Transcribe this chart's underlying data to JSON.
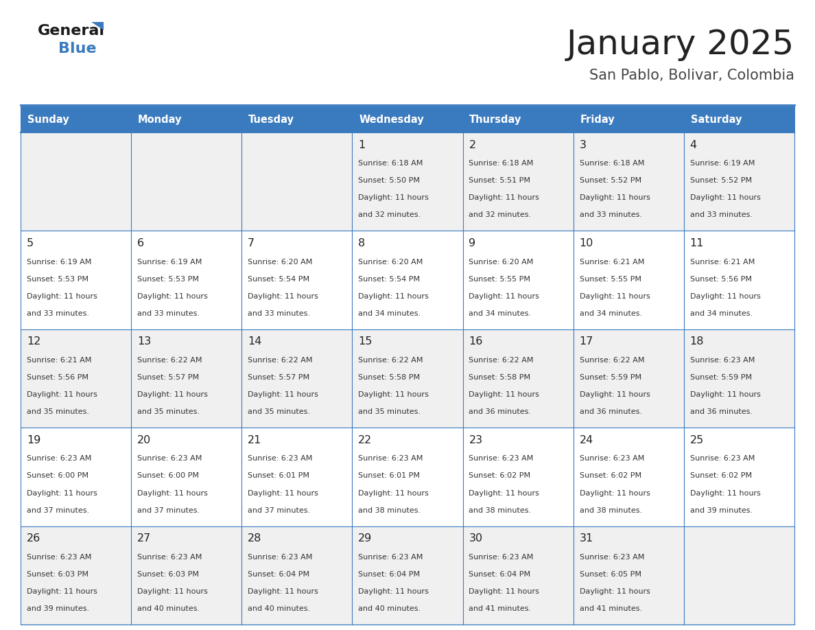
{
  "title": "January 2025",
  "subtitle": "San Pablo, Bolivar, Colombia",
  "days_of_week": [
    "Sunday",
    "Monday",
    "Tuesday",
    "Wednesday",
    "Thursday",
    "Friday",
    "Saturday"
  ],
  "header_bg": "#3a7abf",
  "header_text_color": "#ffffff",
  "row_bg_odd": "#f0f0f0",
  "row_bg_even": "#ffffff",
  "border_color": "#3a7abf",
  "day_number_color": "#222222",
  "content_color": "#333333",
  "title_color": "#222222",
  "subtitle_color": "#444444",
  "logo_general_color": "#1a1a1a",
  "logo_blue_color": "#3a7abf",
  "logo_triangle_color": "#3a7abf",
  "calendar_data": [
    [
      null,
      null,
      null,
      {
        "day": "1",
        "sunrise": "6:18 AM",
        "sunset": "5:50 PM",
        "daylight_line1": "Daylight: 11 hours",
        "daylight_line2": "and 32 minutes."
      },
      {
        "day": "2",
        "sunrise": "6:18 AM",
        "sunset": "5:51 PM",
        "daylight_line1": "Daylight: 11 hours",
        "daylight_line2": "and 32 minutes."
      },
      {
        "day": "3",
        "sunrise": "6:18 AM",
        "sunset": "5:52 PM",
        "daylight_line1": "Daylight: 11 hours",
        "daylight_line2": "and 33 minutes."
      },
      {
        "day": "4",
        "sunrise": "6:19 AM",
        "sunset": "5:52 PM",
        "daylight_line1": "Daylight: 11 hours",
        "daylight_line2": "and 33 minutes."
      }
    ],
    [
      {
        "day": "5",
        "sunrise": "6:19 AM",
        "sunset": "5:53 PM",
        "daylight_line1": "Daylight: 11 hours",
        "daylight_line2": "and 33 minutes."
      },
      {
        "day": "6",
        "sunrise": "6:19 AM",
        "sunset": "5:53 PM",
        "daylight_line1": "Daylight: 11 hours",
        "daylight_line2": "and 33 minutes."
      },
      {
        "day": "7",
        "sunrise": "6:20 AM",
        "sunset": "5:54 PM",
        "daylight_line1": "Daylight: 11 hours",
        "daylight_line2": "and 33 minutes."
      },
      {
        "day": "8",
        "sunrise": "6:20 AM",
        "sunset": "5:54 PM",
        "daylight_line1": "Daylight: 11 hours",
        "daylight_line2": "and 34 minutes."
      },
      {
        "day": "9",
        "sunrise": "6:20 AM",
        "sunset": "5:55 PM",
        "daylight_line1": "Daylight: 11 hours",
        "daylight_line2": "and 34 minutes."
      },
      {
        "day": "10",
        "sunrise": "6:21 AM",
        "sunset": "5:55 PM",
        "daylight_line1": "Daylight: 11 hours",
        "daylight_line2": "and 34 minutes."
      },
      {
        "day": "11",
        "sunrise": "6:21 AM",
        "sunset": "5:56 PM",
        "daylight_line1": "Daylight: 11 hours",
        "daylight_line2": "and 34 minutes."
      }
    ],
    [
      {
        "day": "12",
        "sunrise": "6:21 AM",
        "sunset": "5:56 PM",
        "daylight_line1": "Daylight: 11 hours",
        "daylight_line2": "and 35 minutes."
      },
      {
        "day": "13",
        "sunrise": "6:22 AM",
        "sunset": "5:57 PM",
        "daylight_line1": "Daylight: 11 hours",
        "daylight_line2": "and 35 minutes."
      },
      {
        "day": "14",
        "sunrise": "6:22 AM",
        "sunset": "5:57 PM",
        "daylight_line1": "Daylight: 11 hours",
        "daylight_line2": "and 35 minutes."
      },
      {
        "day": "15",
        "sunrise": "6:22 AM",
        "sunset": "5:58 PM",
        "daylight_line1": "Daylight: 11 hours",
        "daylight_line2": "and 35 minutes."
      },
      {
        "day": "16",
        "sunrise": "6:22 AM",
        "sunset": "5:58 PM",
        "daylight_line1": "Daylight: 11 hours",
        "daylight_line2": "and 36 minutes."
      },
      {
        "day": "17",
        "sunrise": "6:22 AM",
        "sunset": "5:59 PM",
        "daylight_line1": "Daylight: 11 hours",
        "daylight_line2": "and 36 minutes."
      },
      {
        "day": "18",
        "sunrise": "6:23 AM",
        "sunset": "5:59 PM",
        "daylight_line1": "Daylight: 11 hours",
        "daylight_line2": "and 36 minutes."
      }
    ],
    [
      {
        "day": "19",
        "sunrise": "6:23 AM",
        "sunset": "6:00 PM",
        "daylight_line1": "Daylight: 11 hours",
        "daylight_line2": "and 37 minutes."
      },
      {
        "day": "20",
        "sunrise": "6:23 AM",
        "sunset": "6:00 PM",
        "daylight_line1": "Daylight: 11 hours",
        "daylight_line2": "and 37 minutes."
      },
      {
        "day": "21",
        "sunrise": "6:23 AM",
        "sunset": "6:01 PM",
        "daylight_line1": "Daylight: 11 hours",
        "daylight_line2": "and 37 minutes."
      },
      {
        "day": "22",
        "sunrise": "6:23 AM",
        "sunset": "6:01 PM",
        "daylight_line1": "Daylight: 11 hours",
        "daylight_line2": "and 38 minutes."
      },
      {
        "day": "23",
        "sunrise": "6:23 AM",
        "sunset": "6:02 PM",
        "daylight_line1": "Daylight: 11 hours",
        "daylight_line2": "and 38 minutes."
      },
      {
        "day": "24",
        "sunrise": "6:23 AM",
        "sunset": "6:02 PM",
        "daylight_line1": "Daylight: 11 hours",
        "daylight_line2": "and 38 minutes."
      },
      {
        "day": "25",
        "sunrise": "6:23 AM",
        "sunset": "6:02 PM",
        "daylight_line1": "Daylight: 11 hours",
        "daylight_line2": "and 39 minutes."
      }
    ],
    [
      {
        "day": "26",
        "sunrise": "6:23 AM",
        "sunset": "6:03 PM",
        "daylight_line1": "Daylight: 11 hours",
        "daylight_line2": "and 39 minutes."
      },
      {
        "day": "27",
        "sunrise": "6:23 AM",
        "sunset": "6:03 PM",
        "daylight_line1": "Daylight: 11 hours",
        "daylight_line2": "and 40 minutes."
      },
      {
        "day": "28",
        "sunrise": "6:23 AM",
        "sunset": "6:04 PM",
        "daylight_line1": "Daylight: 11 hours",
        "daylight_line2": "and 40 minutes."
      },
      {
        "day": "29",
        "sunrise": "6:23 AM",
        "sunset": "6:04 PM",
        "daylight_line1": "Daylight: 11 hours",
        "daylight_line2": "and 40 minutes."
      },
      {
        "day": "30",
        "sunrise": "6:23 AM",
        "sunset": "6:04 PM",
        "daylight_line1": "Daylight: 11 hours",
        "daylight_line2": "and 41 minutes."
      },
      {
        "day": "31",
        "sunrise": "6:23 AM",
        "sunset": "6:05 PM",
        "daylight_line1": "Daylight: 11 hours",
        "daylight_line2": "and 41 minutes."
      },
      null
    ]
  ]
}
